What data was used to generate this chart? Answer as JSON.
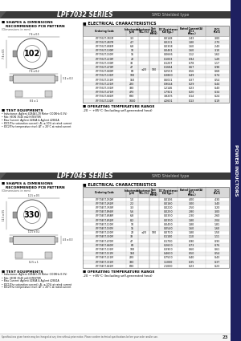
{
  "title1": "LPF7032 SERIES",
  "title2": "LPF7045 SERIES",
  "smd_type": "SMD Shielded type",
  "section1_label": "102",
  "section2_label": "330",
  "shapes_title_line1": "SHAPES & DIMENSIONS",
  "shapes_title_line2": "RECOMMENDED PCB PATTERN",
  "dim_note": "(Dimensions in mm)",
  "elec_title": "ELECTRICAL CHARACTERISTICS",
  "test_title": "TEST EQUIPMENTS",
  "op_temp_title": "OPERATING TEMPERATURE RANGE",
  "op_temp_text": "-20 ~ +85°C (Including self-generated heat)",
  "sidebar_text": "POWER INDUCTORS",
  "page_note": "Specifications given herein may be changed at any time without prior notice. Please confirm technical specifications before your order and/or use.",
  "page_num": "23",
  "test_texts": [
    "• Inductance: Agilent 4284A LCR Meter (100KHz 0.5V)",
    "• Rdc: HIOKI 3540 mΩ HITESTER",
    "• Bias Current: Agilent 4284A & Agilent 42841A",
    "• IDC1(The saturation current): ΔL ≤ 10% at rated current",
    "• IDC2(The temperature rise): ΔT = 20°C at rated current"
  ],
  "table1_data": [
    [
      "LPF7032T-3R3M",
      "3.3",
      "0.0148",
      "2.43",
      "3.00"
    ],
    [
      "LPF7032T-4R7M",
      "4.7",
      "0.0211",
      "1.80",
      "2.70"
    ],
    [
      "LPF7032T-6R8M",
      "6.8",
      "0.0308",
      "1.60",
      "2.40"
    ],
    [
      "LPF7032T-100M",
      "10",
      "0.0461",
      "1.60",
      "3.10"
    ],
    [
      "LPF7032T-150M",
      "15",
      "0.0666",
      "1.12",
      "1.62"
    ],
    [
      "LPF7032T-220M",
      "22",
      "0.1003",
      "0.94",
      "1.49"
    ],
    [
      "LPF7032T-330M",
      "33",
      "0.1207",
      "0.78",
      "1.17"
    ],
    [
      "LPF7032T-470M",
      "47",
      "0.1684",
      "0.67",
      "0.98"
    ],
    [
      "LPF7032T-680M",
      "68",
      "0.2553",
      "0.56",
      "0.68"
    ],
    [
      "LPF7032T-101M",
      "100",
      "0.3860",
      "0.49",
      "0.74"
    ],
    [
      "LPF7032T-151M",
      "150",
      "0.6011",
      "0.37",
      "0.54"
    ],
    [
      "LPF7032T-221M",
      "220",
      "0.9044",
      "0.29",
      "0.44"
    ],
    [
      "LPF7032T-331M",
      "330",
      "1.2146",
      "0.23",
      "0.40"
    ],
    [
      "LPF7032T-471M",
      "470",
      "1.7921",
      "0.20",
      "0.34"
    ],
    [
      "LPF7032T-681M",
      "680",
      "3.8205",
      "0.14",
      "0.24"
    ],
    [
      "LPF7032T-102M",
      "1000",
      "4.2601",
      "0.13",
      "0.19"
    ]
  ],
  "table2_data": [
    [
      "LPF7045T-1R0M",
      "1.0",
      "0.0106",
      "4.00",
      "4.30"
    ],
    [
      "LPF7045T-2R2M",
      "2.2",
      "0.0160",
      "3.00",
      "3.40"
    ],
    [
      "LPF7045T-3R3M",
      "3.3",
      "0.0210",
      "2.50",
      "3.20"
    ],
    [
      "LPF7045T-5R6M",
      "5.6",
      "0.0250",
      "2.80",
      "3.00"
    ],
    [
      "LPF7045T-6R8M",
      "6.8",
      "0.0390",
      "2.30",
      "2.60"
    ],
    [
      "LPF7045T-8R2M",
      "8.2",
      "0.0390",
      "1.80",
      "2.04"
    ],
    [
      "LPF7045T-100M",
      "10",
      "0.0490",
      "1.80",
      "1.81"
    ],
    [
      "LPF7045T-150M",
      "15",
      "0.0540",
      "1.60",
      "1.60"
    ],
    [
      "LPF7045T-220M",
      "22",
      "0.0700",
      "1.80",
      "1.50"
    ],
    [
      "LPF7045T-330M",
      "33",
      "0.1100",
      "1.10",
      "1.11"
    ],
    [
      "LPF7045T-470M",
      "47",
      "0.1700",
      "0.90",
      "0.93"
    ],
    [
      "LPF7045T-680M",
      "68",
      "0.2600",
      "0.73",
      "0.76"
    ],
    [
      "LPF7045T-101M",
      "100",
      "0.3900",
      "0.60",
      "0.61"
    ],
    [
      "LPF7045T-151M",
      "150",
      "0.4600",
      "0.50",
      "0.54"
    ],
    [
      "LPF7045T-221M",
      "220",
      "0.7500",
      "0.40",
      "0.43"
    ],
    [
      "LPF7045T-331M",
      "330",
      "1.1000",
      "0.35",
      "0.37"
    ],
    [
      "LPF7045T-681M",
      "680",
      "2.1000",
      "0.23",
      "0.23"
    ]
  ],
  "tol_val": "±20",
  "freq_val": "100",
  "tol_row1": 8,
  "freq_row1": 8,
  "tol_row2": 9,
  "freq_row2": 9,
  "bg_color": "#ffffff",
  "header_bg": "#d8d8d8",
  "row_odd_bg": "#eeeeee",
  "row_even_bg": "#ffffff",
  "title_bar_color": "#3a3a3a",
  "title_text_color": "#ffffff",
  "sidebar_color": "#1e2060",
  "line_color": "#888888",
  "section1_dims": {
    "top_w": "7.6 ± 0.5",
    "side_h": "3.2 ± 0.3",
    "side_w": "7.6 ± 0.2",
    "pcb_w": "8.5 ± 1"
  },
  "section2_dims": {
    "top_w": "11.5 ± 0.5",
    "side_h": "4.5 ± 0.3",
    "side_w": "11.5 ± 0.2",
    "pcb_w": "12.5 ± 1"
  }
}
